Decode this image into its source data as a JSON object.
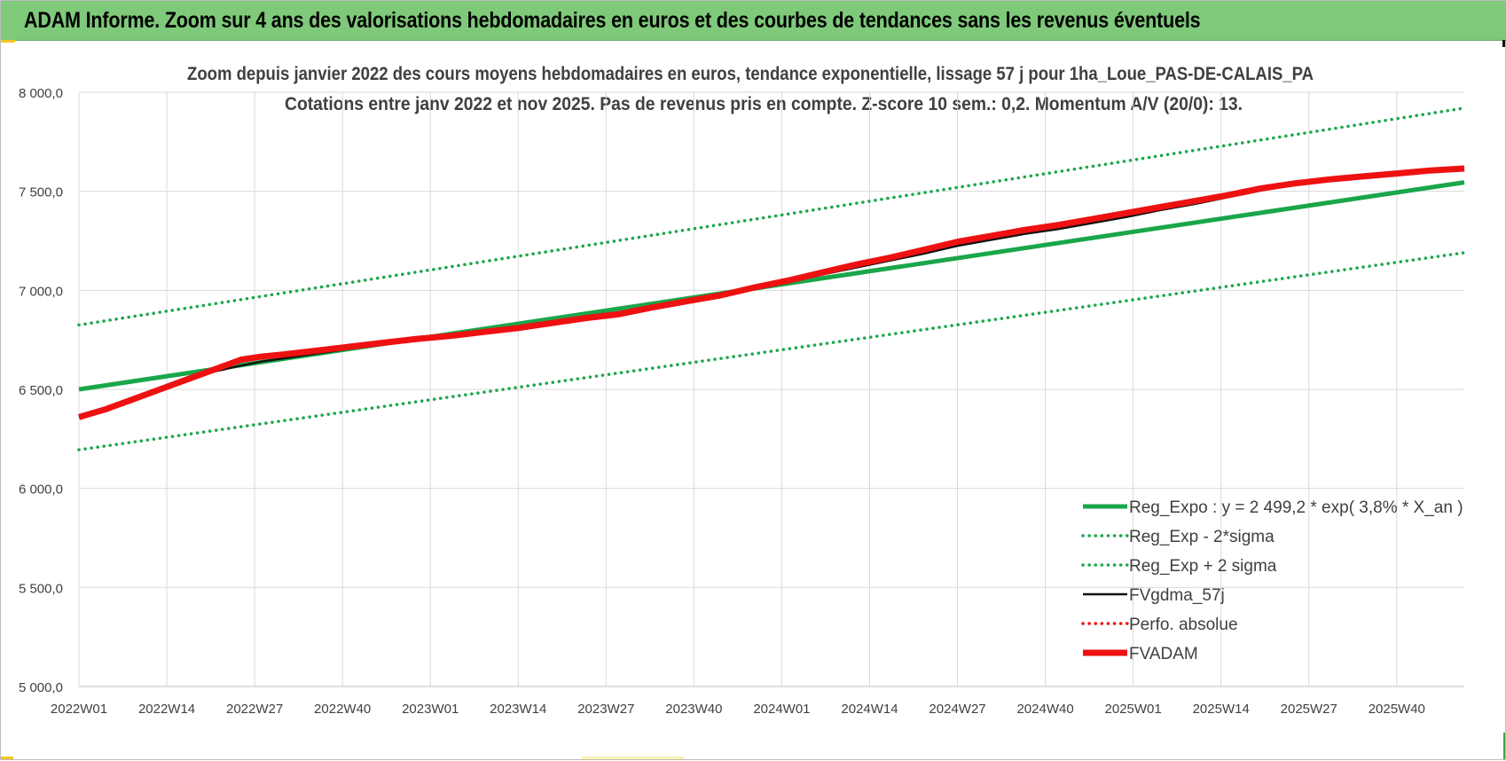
{
  "banner": {
    "title": "ADAM Informe. Zoom sur 4 ans des valorisations hebdomadaires en euros et des courbes de tendances sans les revenus éventuels"
  },
  "colors": {
    "banner_bg": "#7fc97a",
    "reg_green": "#1aa64a",
    "fv_red": "#ee1111",
    "fv_black": "#111111",
    "grid": "#d9d9d9",
    "text": "#404040"
  },
  "chart_data": {
    "type": "line",
    "title_line1": "Zoom depuis janvier 2022 des cours moyens hebdomadaires en euros, tendance exponentielle, lissage 57 j pour 1ha_Loue_PAS-DE-CALAIS_PA",
    "title_line2": "Cotations entre janv 2022 et nov 2025. Pas de revenus pris en compte. Z-score 10 sem.: 0,2. Momentum A/V (20/0): 13.",
    "xlabel": "",
    "ylabel": "",
    "ylim": [
      5000,
      8000
    ],
    "y_ticks": [
      5000,
      5500,
      6000,
      6500,
      7000,
      7500,
      8000
    ],
    "y_tick_labels": [
      "5 000,0",
      "5 500,0",
      "6 000,0",
      "6 500,0",
      "7 000,0",
      "7 500,0",
      "8 000,0"
    ],
    "x_range": [
      0,
      205
    ],
    "x_ticks": [
      0,
      13,
      26,
      39,
      52,
      65,
      78,
      91,
      104,
      117,
      130,
      143,
      156,
      169,
      182,
      195
    ],
    "x_tick_labels": [
      "2022W01",
      "2022W14",
      "2022W27",
      "2022W40",
      "2023W01",
      "2023W14",
      "2023W27",
      "2023W40",
      "2024W01",
      "2024W14",
      "2024W27",
      "2024W40",
      "2025W01",
      "2025W14",
      "2025W27",
      "2025W40"
    ],
    "grid": true,
    "legend_position": "bottom-right",
    "series": [
      {
        "name": "Reg_Expo : y = 2 499,2 * exp( 3,8% *  X_an )",
        "style": "solid-thick",
        "color": "#1aa64a",
        "x": [
          0,
          205
        ],
        "values": [
          6500,
          7545
        ]
      },
      {
        "name": "Reg_Exp - 2*sigma",
        "style": "dotted",
        "color": "#1aa64a",
        "x": [
          0,
          205
        ],
        "values": [
          6195,
          7190
        ]
      },
      {
        "name": "Reg_Exp + 2 sigma",
        "style": "dotted",
        "color": "#1aa64a",
        "x": [
          0,
          205
        ],
        "values": [
          6825,
          7920
        ]
      },
      {
        "name": "FVgdma_57j",
        "style": "solid",
        "color": "#111111",
        "x": [
          0,
          4,
          8,
          12,
          16,
          20,
          24,
          27,
          30,
          35,
          40,
          45,
          50,
          55,
          60,
          65,
          70,
          75,
          80,
          85,
          90,
          95,
          100,
          105,
          110,
          115,
          120,
          125,
          130,
          135,
          140,
          145,
          150,
          155,
          160,
          165,
          170,
          175,
          180,
          185,
          190,
          195,
          200,
          205
        ],
        "values": [
          6360,
          6405,
          6455,
          6500,
          6550,
          6590,
          6620,
          6640,
          6655,
          6680,
          6705,
          6730,
          6755,
          6775,
          6790,
          6815,
          6840,
          6860,
          6885,
          6915,
          6940,
          6970,
          7005,
          7040,
          7080,
          7115,
          7150,
          7185,
          7225,
          7255,
          7285,
          7310,
          7340,
          7370,
          7405,
          7435,
          7470,
          7505,
          7535,
          7560,
          7575,
          7590,
          7605,
          7615
        ]
      },
      {
        "name": "Perfo. absolue",
        "style": "dotted",
        "color": "#ee1111",
        "x": [],
        "values": []
      },
      {
        "name": "FVADAM",
        "style": "solid-thick",
        "color": "#ee1111",
        "x": [
          0,
          4,
          8,
          12,
          16,
          20,
          24,
          27,
          30,
          35,
          40,
          45,
          50,
          55,
          60,
          65,
          70,
          75,
          80,
          85,
          90,
          95,
          100,
          105,
          110,
          115,
          120,
          125,
          130,
          135,
          140,
          145,
          150,
          155,
          160,
          165,
          170,
          175,
          180,
          185,
          190,
          195,
          200,
          205
        ],
        "values": [
          6360,
          6400,
          6450,
          6500,
          6550,
          6600,
          6650,
          6665,
          6675,
          6695,
          6715,
          6735,
          6755,
          6770,
          6790,
          6810,
          6835,
          6860,
          6880,
          6915,
          6945,
          6975,
          7015,
          7050,
          7090,
          7130,
          7165,
          7205,
          7245,
          7275,
          7305,
          7330,
          7360,
          7390,
          7420,
          7450,
          7480,
          7515,
          7540,
          7560,
          7575,
          7590,
          7605,
          7615
        ]
      }
    ]
  }
}
